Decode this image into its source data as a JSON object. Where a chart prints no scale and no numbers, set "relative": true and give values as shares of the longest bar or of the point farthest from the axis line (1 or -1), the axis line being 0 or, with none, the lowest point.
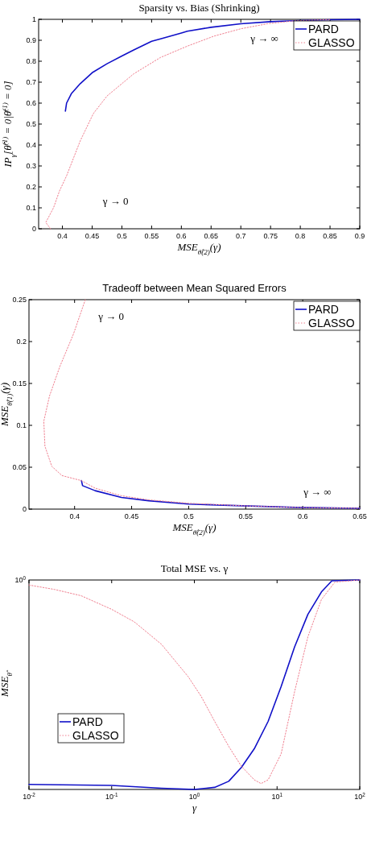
{
  "chart_data": [
    {
      "type": "line",
      "title": "Sparsity vs. Bias (Shrinking)",
      "xlabel": "MSE$_{θ̂(2)}$(γ)",
      "ylabel": "IP$_{γ}$[θ̂$^{(1)}$ = 0|θ̄$^{(1)}$ = 0]",
      "xlim": [
        0.36,
        0.9
      ],
      "ylim": [
        0,
        1
      ],
      "xticks": [
        0.4,
        0.45,
        0.5,
        0.55,
        0.6,
        0.65,
        0.7,
        0.75,
        0.8,
        0.85,
        0.9
      ],
      "yticks": [
        0,
        0.1,
        0.2,
        0.3,
        0.4,
        0.5,
        0.6,
        0.7,
        0.8,
        0.9,
        1
      ],
      "legend": "top right",
      "annotations": [
        "γ → ∞",
        "γ → 0"
      ],
      "series": [
        {
          "name": "PARD",
          "color": "#1010c8",
          "line_style": "solid",
          "x": [
            0.405,
            0.407,
            0.415,
            0.43,
            0.45,
            0.475,
            0.5,
            0.52,
            0.55,
            0.565,
            0.6,
            0.61,
            0.65,
            0.7,
            0.75,
            0.79,
            0.85,
            0.9
          ],
          "values": [
            0.562,
            0.6,
            0.645,
            0.693,
            0.745,
            0.788,
            0.825,
            0.854,
            0.895,
            0.907,
            0.935,
            0.943,
            0.962,
            0.979,
            0.989,
            0.993,
            0.998,
            1
          ]
        },
        {
          "name": "GLASSO",
          "color": "#f08090",
          "line_style": "dotted",
          "x": [
            0.38,
            0.372,
            0.385,
            0.395,
            0.407,
            0.43,
            0.452,
            0.475,
            0.52,
            0.565,
            0.61,
            0.655,
            0.7,
            0.745,
            0.79,
            0.85
          ],
          "values": [
            0,
            0.03,
            0.1,
            0.18,
            0.253,
            0.42,
            0.55,
            0.634,
            0.74,
            0.818,
            0.872,
            0.92,
            0.955,
            0.979,
            0.993,
            0.999
          ]
        }
      ]
    },
    {
      "type": "line",
      "title": "Tradeoff between Mean Squared Errors",
      "xlabel": "MSE$_{θ̂(2)}$(γ)",
      "ylabel": "MSE$_{θ̂(1)}$(γ)",
      "xlim": [
        0.36,
        0.65
      ],
      "ylim": [
        0,
        0.25
      ],
      "xticks": [
        0.4,
        0.45,
        0.5,
        0.55,
        0.6,
        0.65
      ],
      "yticks": [
        0,
        0.05,
        0.1,
        0.15,
        0.2,
        0.25
      ],
      "legend": "top right",
      "annotations": [
        "γ → 0",
        "γ → ∞"
      ],
      "series": [
        {
          "name": "PARD",
          "color": "#1010c8",
          "line_style": "solid",
          "x": [
            0.406,
            0.407,
            0.418,
            0.441,
            0.465,
            0.5,
            0.547,
            0.594,
            0.65
          ],
          "values": [
            0.034,
            0.028,
            0.022,
            0.014,
            0.01,
            0.006,
            0.004,
            0.002,
            0.001
          ]
        },
        {
          "name": "GLASSO",
          "color": "#f08090",
          "line_style": "dotted",
          "x": [
            0.4094,
            0.399,
            0.387,
            0.378,
            0.373,
            0.374,
            0.38,
            0.389,
            0.406,
            0.418,
            0.441,
            0.465,
            0.5,
            0.547,
            0.594,
            0.65
          ],
          "values": [
            0.25,
            0.209,
            0.17,
            0.135,
            0.105,
            0.075,
            0.051,
            0.04,
            0.034,
            0.025,
            0.016,
            0.011,
            0.007,
            0.004,
            0.002,
            0.001
          ]
        }
      ]
    },
    {
      "type": "line",
      "title": "Total MSE vs. γ",
      "xlabel": "γ",
      "ylabel": "MSE$_{θ̂}$",
      "log": "x",
      "relative": true,
      "xlim": [
        0.01,
        100
      ],
      "xticks": [
        {
          "value": 0.01,
          "label": "10$^{-2}$"
        },
        {
          "value": 0.1,
          "label": "10$^{-1}$"
        },
        {
          "value": 1,
          "label": "10$^{0}$"
        },
        {
          "value": 10,
          "label": "10$^{1}$"
        },
        {
          "value": 100,
          "label": "10$^{2}$"
        }
      ],
      "legend": "bottom left",
      "annotations": [
        "10$^{0}$"
      ],
      "series": [
        {
          "name": "PARD",
          "color": "#1010c8",
          "line_style": "solid",
          "x": [
            0.01,
            0.1,
            0.4,
            1,
            1.76,
            2.6,
            3.7,
            5.3,
            7.8,
            11.2,
            16.3,
            23.6,
            34.4,
            46,
            100
          ],
          "values": [
            0.024,
            0.019,
            0.006,
            0,
            0.01,
            0.039,
            0.105,
            0.194,
            0.325,
            0.491,
            0.681,
            0.836,
            0.943,
            0.996,
            1
          ]
        },
        {
          "name": "GLASSO",
          "color": "#f08090",
          "line_style": "dotted",
          "x": [
            0.01,
            0.0203,
            0.0427,
            0.1,
            0.188,
            0.4,
            0.84,
            1.21,
            1.76,
            2.6,
            3.7,
            5.3,
            6.4,
            7.8,
            11.2,
            16.3,
            23.6,
            34.4,
            50,
            100
          ],
          "values": [
            0.976,
            0.955,
            0.925,
            0.86,
            0.8,
            0.693,
            0.539,
            0.444,
            0.325,
            0.206,
            0.111,
            0.046,
            0.028,
            0.046,
            0.17,
            0.467,
            0.729,
            0.907,
            0.99,
            1
          ]
        }
      ]
    }
  ]
}
